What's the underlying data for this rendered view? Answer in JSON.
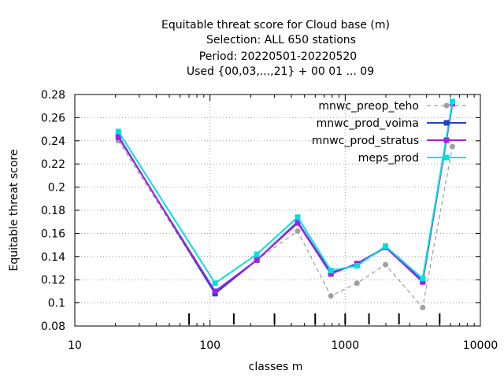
{
  "chart_data": {
    "type": "line",
    "title_lines": [
      "Equitable threat score  for Cloud base (m)",
      "Selection: ALL    650 stations",
      "Period: 20220501-20220520",
      "Used {00,03,...,21} + 00 01 ... 09"
    ],
    "xlabel": "classes m",
    "ylabel": "Equitable threat score",
    "xscale": "log",
    "xlim": [
      10,
      10000
    ],
    "ylim": [
      0.08,
      0.28
    ],
    "x_ticks": [
      10,
      100,
      1000,
      10000
    ],
    "x_tick_labels": [
      "10",
      "100",
      "1000",
      "10000"
    ],
    "y_ticks": [
      0.08,
      0.1,
      0.12,
      0.14,
      0.16,
      0.18,
      0.2,
      0.22,
      0.24,
      0.26,
      0.28
    ],
    "y_tick_labels": [
      "0.08",
      "0.1",
      "0.12",
      "0.14",
      "0.16",
      "0.18",
      "0.2",
      "0.22",
      "0.24",
      "0.26",
      "0.28"
    ],
    "grid": true,
    "legend_position": "top-right",
    "class_markers": [
      70,
      150,
      300,
      600,
      1000,
      1500,
      2500,
      5000
    ],
    "series": [
      {
        "name": "mnwc_preop_teho",
        "color": "#a0a0a0",
        "dashed": true,
        "marker": "circle",
        "x": [
          21,
          109,
          222,
          445,
          784,
          1222,
          1987,
          3742,
          6208
        ],
        "y": [
          0.24,
          0.108,
          0.137,
          0.162,
          0.106,
          0.117,
          0.133,
          0.096,
          0.235
        ]
      },
      {
        "name": "mnwc_prod_voima",
        "color": "#2040c0",
        "dashed": false,
        "marker": "square",
        "x": [
          21,
          109,
          222,
          445,
          784,
          1222,
          1987,
          3742,
          6208
        ],
        "y": [
          0.244,
          0.108,
          0.137,
          0.17,
          0.126,
          0.133,
          0.148,
          0.119,
          0.273
        ]
      },
      {
        "name": "mnwc_prod_stratus",
        "color": "#a020f0",
        "dashed": false,
        "marker": "square",
        "x": [
          21,
          109,
          222,
          445,
          784,
          1222,
          1987,
          3742,
          6208
        ],
        "y": [
          0.243,
          0.11,
          0.137,
          0.169,
          0.125,
          0.134,
          0.148,
          0.118,
          0.272
        ]
      },
      {
        "name": "meps_prod",
        "color": "#00e0e0",
        "dashed": false,
        "marker": "square",
        "x": [
          21,
          109,
          222,
          445,
          784,
          1222,
          1987,
          3742,
          6208
        ],
        "y": [
          0.248,
          0.117,
          0.142,
          0.174,
          0.128,
          0.132,
          0.149,
          0.121,
          0.274
        ]
      }
    ]
  }
}
